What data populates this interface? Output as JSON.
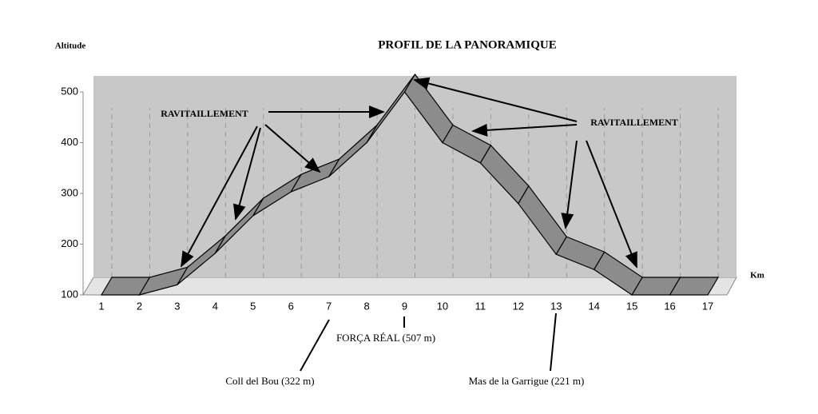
{
  "chart_data": {
    "type": "line3d",
    "title": "PROFIL  DE  LA  PANORAMIQUE",
    "y_label": "Altitude",
    "x_label": "Km",
    "categories": [
      "1",
      "2",
      "3",
      "4",
      "5",
      "6",
      "7",
      "8",
      "9",
      "10",
      "11",
      "12",
      "13",
      "14",
      "15",
      "16",
      "17"
    ],
    "values": [
      100,
      100,
      120,
      182,
      256,
      303,
      333,
      400,
      500,
      400,
      360,
      280,
      180,
      150,
      100,
      100,
      100
    ],
    "color": "#8c8c8c",
    "ylim": [
      100,
      500
    ],
    "yticks": [
      100,
      200,
      300,
      400,
      500
    ],
    "annotations": [
      "RAVITAILLEMENT",
      "RAVITAILLEMENT",
      "FORÇA RÉAL (507 m)",
      "Coll del Bou (322 m)",
      "Mas de la Garrigue (221 m)"
    ]
  }
}
